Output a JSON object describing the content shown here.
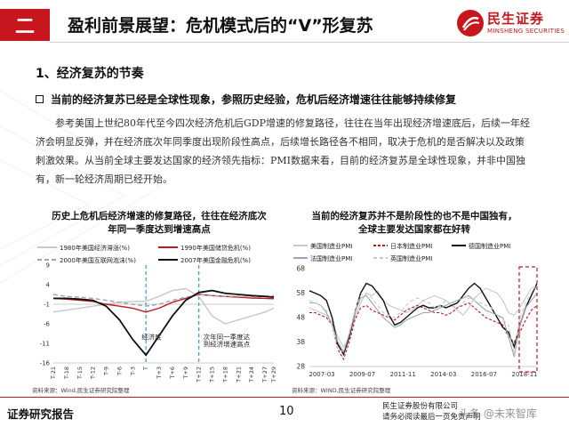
{
  "header": {
    "section_num": "二",
    "title": "盈利前景展望：危机模式后的“V”形复苏",
    "logo_cn": "民生证券",
    "logo_en": "MINSHENG SECURITIES"
  },
  "section_title": "1、经济复苏的节奏",
  "bullet": "当前的经济复苏已经是全球性现象，参照历史经验，危机后经济增速往往能够持续修复",
  "paragraph": [
    "参考美国上世纪80年代至今四次经济危机后GDP增速的修复路径，往往在当年出现经济增速底后，后续一年经",
    "济会明显反弹，并在经济底次年同季度出现阶段性高点，后续增长路径各不相同，取决于危机的是否解决以及政策",
    "刺激效果。从当前全球主要发达国家的经济领先指标：PMI数据来看，目前的经济复苏是全球性现象，并非中国独",
    "有，新一轮经济周期已经开始。"
  ],
  "footer": {
    "left": "证券研究报告",
    "page": "10",
    "right_line1": "民生证券股份有限公司",
    "right_line2": "请务必阅读最后一页免责声明",
    "watermark": "头条 @未来智库"
  },
  "chart_data": [
    {
      "type": "line",
      "title_line1": "历史上危机后经济增速的修复路径，往往在经济底次",
      "title_line2": "年同一季度达到增速高点",
      "source": "资料来源：Wind,民生证券研究院整理",
      "ylim": [
        -16,
        9
      ],
      "yticks": [
        "9",
        "4",
        "-1",
        "-6",
        "-11",
        "-16"
      ],
      "ytick_values": [
        9,
        4,
        -1,
        -6,
        -11,
        -16
      ],
      "xticks": [
        "T-21",
        "T-18",
        "T-15",
        "T-12",
        "T-9",
        "T-6",
        "T-3",
        "T",
        "T+3",
        "T+6",
        "T+9",
        "T+12",
        "T+15",
        "T+18",
        "T+21",
        "T+24",
        "T+27",
        "T+29"
      ],
      "xtick_values": [
        -21,
        -18,
        -15,
        -12,
        -9,
        -6,
        -3,
        0,
        3,
        6,
        9,
        12,
        15,
        18,
        21,
        24,
        27,
        29
      ],
      "annotations": [
        {
          "text": "经济底",
          "x": -1,
          "y": -10
        },
        {
          "text": "次年同一季度达",
          "x": 13,
          "y": -10
        },
        {
          "text": "到经济增速高点",
          "x": 13,
          "y": -11.8
        }
      ],
      "vlines": [
        0,
        12
      ],
      "series": [
        {
          "name": "1980年美国经济滞涨(%)",
          "color": "#c8c8c8",
          "dash": "",
          "x": [
            -21,
            -18,
            -15,
            -12,
            -9,
            -6,
            -3,
            0,
            3,
            6,
            9,
            12,
            15,
            18,
            21,
            24,
            27,
            29
          ],
          "y": [
            -3,
            -2.5,
            -2,
            -1.5,
            -1,
            -0.5,
            -0.3,
            -0.2,
            1,
            2.5,
            3,
            1,
            -4,
            -6,
            -5,
            -4,
            -3,
            -2
          ]
        },
        {
          "name": "1990年美国储贷危机(%)",
          "color": "#c8161e",
          "dash": "",
          "x": [
            -21,
            -18,
            -15,
            -12,
            -9,
            -6,
            -3,
            0,
            3,
            6,
            9,
            12,
            15,
            18,
            21,
            24,
            27,
            29
          ],
          "y": [
            0.5,
            0.3,
            0,
            -0.3,
            -1,
            -1.5,
            -2,
            -3,
            -2,
            -0.5,
            0.5,
            1.5,
            1.2,
            1,
            0.8,
            0.6,
            0.5,
            0.4
          ]
        },
        {
          "name": "2000年美国互联网泡沫(%)",
          "color": "#9aa3b8",
          "dash": "5,3",
          "x": [
            -21,
            -18,
            -15,
            -12,
            -9,
            -6,
            -3,
            0,
            3,
            6,
            9,
            12,
            15,
            18,
            21,
            24,
            27,
            29
          ],
          "y": [
            1.5,
            1,
            0.8,
            0.5,
            0,
            -0.5,
            -1,
            -1.5,
            -1,
            0,
            0.8,
            1.5,
            1.2,
            1,
            1,
            0.8,
            1,
            1.2
          ]
        },
        {
          "name": "2007年美国金融危机(%)",
          "color": "#111111",
          "dash": "",
          "x": [
            -21,
            -18,
            -15,
            -12,
            -9,
            -6,
            -3,
            0,
            3,
            6,
            9,
            12,
            15,
            18,
            21,
            24,
            27,
            29
          ],
          "y": [
            0.5,
            0.5,
            0.3,
            0,
            -1.5,
            -5,
            -10,
            -14,
            -9,
            -4,
            0,
            2,
            2.5,
            1.8,
            1.5,
            1.2,
            1,
            0.8
          ]
        }
      ]
    },
    {
      "type": "line",
      "title_line1": "当前的经济复苏并不是阶段性的也不是中国独有，",
      "title_line2": "全球主要发达国家都在好转",
      "source": "资料来源：WIND,民生证券研究院整理",
      "ylim": [
        28,
        68
      ],
      "yticks": [
        "68",
        "58",
        "48",
        "38",
        "28"
      ],
      "ytick_values": [
        68,
        58,
        48,
        38,
        28
      ],
      "xticks": [
        "2007-03",
        "2009-07",
        "2011-11",
        "2014-03",
        "2016-07",
        "2018-11"
      ],
      "series": [
        {
          "name": "美国制造业PMI",
          "color": "#c8c8c8",
          "dash": "",
          "y": [
            52,
            51,
            50,
            49,
            46,
            40,
            36,
            40,
            48,
            54,
            58,
            57,
            59,
            55,
            53,
            52,
            51,
            50,
            51,
            53,
            55,
            56,
            57,
            56,
            55,
            53,
            51,
            49,
            52,
            56,
            58,
            60,
            59,
            58,
            55,
            50,
            49,
            52,
            56,
            60,
            61
          ]
        },
        {
          "name": "日本制造业PMI",
          "color": "#c8161e",
          "dash": "3,2",
          "y": [
            50,
            50,
            49,
            48,
            45,
            35,
            31,
            38,
            47,
            52,
            53,
            51,
            50,
            49,
            48,
            47,
            49,
            51,
            52,
            53,
            52,
            51,
            50,
            50,
            49,
            50,
            52,
            53,
            54,
            52,
            50,
            48,
            47,
            46,
            45,
            40,
            38,
            42,
            47,
            51,
            53
          ]
        },
        {
          "name": "德国制造业PMI",
          "color": "#111111",
          "dash": "",
          "y": [
            59,
            58,
            57,
            55,
            48,
            37,
            33,
            40,
            50,
            58,
            62,
            61,
            58,
            55,
            49,
            45,
            46,
            48,
            50,
            52,
            53,
            52,
            52,
            53,
            52,
            53,
            54,
            57,
            60,
            62,
            60,
            56,
            52,
            48,
            44,
            42,
            36,
            45,
            52,
            57,
            62
          ]
        },
        {
          "name": "法国制造业PMI",
          "color": "#9aa3b8",
          "dash": "",
          "y": [
            54,
            54,
            53,
            50,
            45,
            38,
            34,
            41,
            50,
            56,
            57,
            54,
            51,
            48,
            46,
            44,
            45,
            47,
            48,
            49,
            50,
            50,
            51,
            52,
            53,
            54,
            55,
            56,
            57,
            55,
            53,
            51,
            50,
            49,
            48,
            40,
            32,
            45,
            52,
            55,
            58
          ]
        },
        {
          "name": "英国制造业PMI",
          "color": "#c8c8c8",
          "dash": "4,3",
          "y": [
            55,
            54,
            53,
            51,
            45,
            35,
            34,
            42,
            51,
            57,
            58,
            56,
            53,
            50,
            49,
            48,
            50,
            53,
            55,
            56,
            55,
            54,
            52,
            53,
            55,
            53,
            52,
            54,
            56,
            55,
            54,
            53,
            52,
            49,
            47,
            45,
            33,
            48,
            54,
            58,
            62
          ]
        }
      ]
    }
  ]
}
